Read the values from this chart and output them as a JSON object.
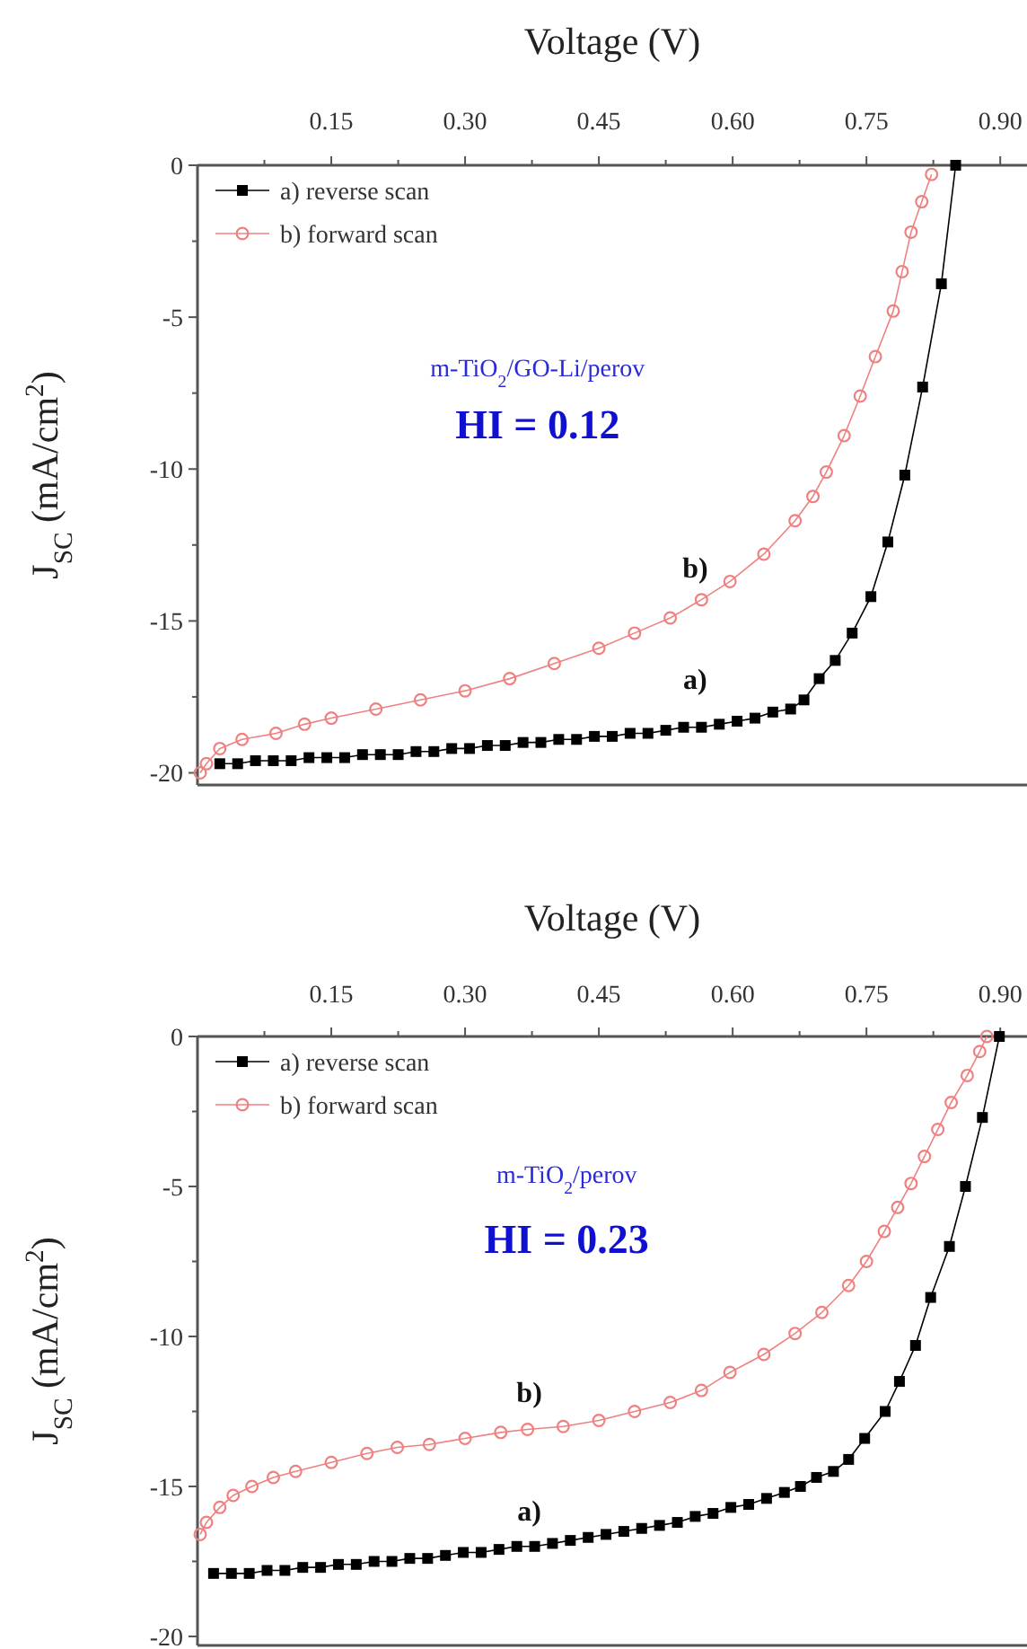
{
  "chart_data": [
    {
      "type": "line",
      "xlabel": "Voltage (V)",
      "ylabel": "J$_{SC}$ (mA/cm$^{2}$)",
      "xlim": [
        0,
        0.93
      ],
      "ylim": [
        -20.4,
        0
      ],
      "xticks": [
        {
          "value": 0.075,
          "label": null
        },
        0.15,
        {
          "value": 0.225,
          "label": null
        },
        {
          "value": 0.3,
          "label": "0.30"
        },
        {
          "value": 0.375,
          "label": null
        },
        0.45,
        {
          "value": 0.525,
          "label": null
        },
        {
          "value": 0.6,
          "label": "0.60"
        },
        {
          "value": 0.675,
          "label": null
        },
        0.75,
        {
          "value": 0.825,
          "label": null
        },
        {
          "value": 0.9,
          "label": "0.90"
        }
      ],
      "yticks": [
        0,
        {
          "value": -2.5,
          "label": null
        },
        -5,
        {
          "value": -7.5,
          "label": null
        },
        -10,
        {
          "value": -12.5,
          "label": null
        },
        -15,
        {
          "value": -17.5,
          "label": null
        },
        -20
      ],
      "legend": "top left",
      "line_style": "solid",
      "grid": false,
      "series": [
        {
          "name": "a) reverse scan",
          "color": "#000000",
          "marker": "square",
          "x": [
            0.025,
            0.045,
            0.065,
            0.085,
            0.105,
            0.125,
            0.145,
            0.165,
            0.185,
            0.205,
            0.225,
            0.245,
            0.265,
            0.285,
            0.305,
            0.325,
            0.345,
            0.365,
            0.385,
            0.405,
            0.425,
            0.445,
            0.465,
            0.485,
            0.505,
            0.525,
            0.545,
            0.565,
            0.585,
            0.605,
            0.625,
            0.645,
            0.665,
            0.68,
            0.697,
            0.715,
            0.734,
            0.755,
            0.774,
            0.793,
            0.813,
            0.834,
            0.85
          ],
          "values": [
            -19.7,
            -19.7,
            -19.6,
            -19.6,
            -19.6,
            -19.5,
            -19.5,
            -19.5,
            -19.4,
            -19.4,
            -19.4,
            -19.3,
            -19.3,
            -19.2,
            -19.2,
            -19.1,
            -19.1,
            -19.0,
            -19.0,
            -18.9,
            -18.9,
            -18.8,
            -18.8,
            -18.7,
            -18.7,
            -18.6,
            -18.5,
            -18.5,
            -18.4,
            -18.3,
            -18.2,
            -18.0,
            -17.9,
            -17.6,
            -16.9,
            -16.3,
            -15.4,
            -14.2,
            -12.4,
            -10.2,
            -7.3,
            -3.9,
            0
          ]
        },
        {
          "name": "b) forward scan",
          "color": "#f08080",
          "marker": "circle",
          "x": [
            0.003,
            0.01,
            0.025,
            0.05,
            0.088,
            0.12,
            0.15,
            0.2,
            0.25,
            0.3,
            0.35,
            0.4,
            0.45,
            0.49,
            0.53,
            0.565,
            0.597,
            0.635,
            0.67,
            0.69,
            0.705,
            0.725,
            0.743,
            0.76,
            0.78,
            0.79,
            0.8,
            0.812,
            0.823
          ],
          "values": [
            -20.0,
            -19.7,
            -19.2,
            -18.9,
            -18.7,
            -18.4,
            -18.2,
            -17.9,
            -17.6,
            -17.3,
            -16.9,
            -16.4,
            -15.9,
            -15.4,
            -14.9,
            -14.3,
            -13.7,
            -12.8,
            -11.7,
            -10.9,
            -10.1,
            -8.9,
            -7.6,
            -6.3,
            -4.8,
            -3.5,
            -2.2,
            -1.2,
            -0.3
          ]
        }
      ],
      "annotations": [
        "m-TiO$_{2}$/GO-Li/perov",
        "HI = 0.12",
        "b)",
        "a)"
      ]
    },
    {
      "type": "line",
      "xlabel": "Voltage (V)",
      "ylabel": "J$_{SC}$ (mA/cm$^{2}$)",
      "xlim": [
        0,
        0.93
      ],
      "ylim": [
        -20.3,
        0
      ],
      "xticks": [
        {
          "value": 0.075,
          "label": null
        },
        0.15,
        {
          "value": 0.225,
          "label": null
        },
        {
          "value": 0.3,
          "label": "0.30"
        },
        {
          "value": 0.375,
          "label": null
        },
        0.45,
        {
          "value": 0.525,
          "label": null
        },
        {
          "value": 0.6,
          "label": "0.60"
        },
        {
          "value": 0.675,
          "label": null
        },
        0.75,
        {
          "value": 0.825,
          "label": null
        },
        {
          "value": 0.9,
          "label": "0.90"
        }
      ],
      "yticks": [
        0,
        {
          "value": -2.5,
          "label": null
        },
        -5,
        {
          "value": -7.5,
          "label": null
        },
        -10,
        {
          "value": -12.5,
          "label": null
        },
        -15,
        {
          "value": -17.5,
          "label": null
        },
        -20
      ],
      "legend": "top left",
      "line_style": "solid",
      "grid": false,
      "series": [
        {
          "name": "a) reverse scan",
          "color": "#000000",
          "marker": "square",
          "x": [
            0.018,
            0.038,
            0.058,
            0.078,
            0.098,
            0.118,
            0.138,
            0.158,
            0.178,
            0.198,
            0.218,
            0.238,
            0.258,
            0.278,
            0.298,
            0.318,
            0.338,
            0.358,
            0.378,
            0.398,
            0.418,
            0.438,
            0.458,
            0.478,
            0.498,
            0.518,
            0.538,
            0.558,
            0.578,
            0.598,
            0.618,
            0.638,
            0.658,
            0.676,
            0.694,
            0.713,
            0.73,
            0.748,
            0.771,
            0.787,
            0.805,
            0.822,
            0.843,
            0.861,
            0.88,
            0.899
          ],
          "values": [
            -17.9,
            -17.9,
            -17.9,
            -17.8,
            -17.8,
            -17.7,
            -17.7,
            -17.6,
            -17.6,
            -17.5,
            -17.5,
            -17.4,
            -17.4,
            -17.3,
            -17.2,
            -17.2,
            -17.1,
            -17.0,
            -17.0,
            -16.9,
            -16.8,
            -16.7,
            -16.6,
            -16.5,
            -16.4,
            -16.3,
            -16.2,
            -16.0,
            -15.9,
            -15.7,
            -15.6,
            -15.4,
            -15.2,
            -15.0,
            -14.7,
            -14.5,
            -14.1,
            -13.4,
            -12.5,
            -11.5,
            -10.3,
            -8.7,
            -7.0,
            -5.0,
            -2.7,
            0
          ]
        },
        {
          "name": "b) forward scan",
          "color": "#f08080",
          "marker": "circle",
          "x": [
            0.003,
            0.01,
            0.025,
            0.04,
            0.061,
            0.085,
            0.11,
            0.15,
            0.19,
            0.224,
            0.26,
            0.3,
            0.34,
            0.37,
            0.41,
            0.45,
            0.49,
            0.53,
            0.565,
            0.597,
            0.635,
            0.67,
            0.7,
            0.73,
            0.75,
            0.77,
            0.785,
            0.8,
            0.815,
            0.83,
            0.845,
            0.863,
            0.877,
            0.885
          ],
          "values": [
            -16.6,
            -16.2,
            -15.7,
            -15.3,
            -15.0,
            -14.7,
            -14.5,
            -14.2,
            -13.9,
            -13.7,
            -13.6,
            -13.4,
            -13.2,
            -13.1,
            -13.0,
            -12.8,
            -12.5,
            -12.2,
            -11.8,
            -11.2,
            -10.6,
            -9.9,
            -9.2,
            -8.3,
            -7.5,
            -6.5,
            -5.7,
            -4.9,
            -4.0,
            -3.1,
            -2.2,
            -1.3,
            -0.5,
            0
          ]
        }
      ],
      "annotations": [
        "m-TiO$_{2}$/perov",
        "HI = 0.23",
        "b)",
        "a)"
      ]
    }
  ]
}
